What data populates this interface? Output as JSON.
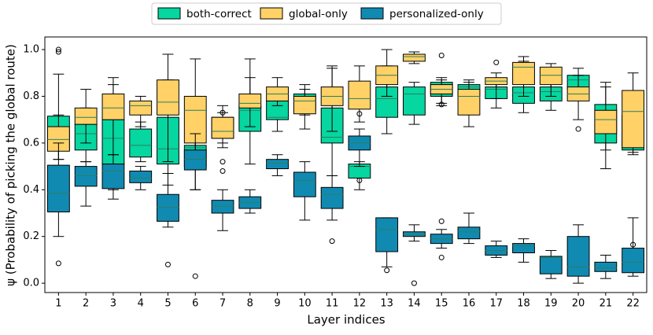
{
  "chart_data": {
    "type": "box",
    "ylabel": "ψ (Probability of picking the global route)",
    "xlabel": "Layer indices",
    "categories": [
      "1",
      "2",
      "3",
      "4",
      "5",
      "6",
      "7",
      "8",
      "9",
      "10",
      "11",
      "12",
      "13",
      "14",
      "15",
      "16",
      "17",
      "18",
      "19",
      "20",
      "21",
      "22"
    ],
    "ylim": [
      -0.04,
      1.054
    ],
    "yticks": [
      {
        "value": 0,
        "label": "0.0"
      },
      {
        "value": 0.2,
        "label": "0.2"
      },
      {
        "value": 0.4,
        "label": "0.4"
      },
      {
        "value": 0.6,
        "label": "0.6"
      },
      {
        "value": 0.8,
        "label": "0.8"
      },
      {
        "value": 1,
        "label": "1.0"
      }
    ],
    "legend": "upper center",
    "series": [
      {
        "name": "both-correct",
        "color": "#06d6a0",
        "values": [
          [
            0.53,
            0.57,
            0.67,
            0.715,
            0.895
          ],
          [
            0.52,
            0.57,
            0.64,
            0.68,
            0.75
          ],
          [
            0.4,
            0.51,
            0.62,
            0.7,
            0.85
          ],
          [
            0.52,
            0.54,
            0.59,
            0.66,
            0.69
          ],
          [
            0.42,
            0.51,
            0.575,
            0.71,
            0.87
          ],
          [
            0.4,
            0.5,
            0.58,
            0.59,
            0.75
          ],
          [
            0.58,
            0.62,
            0.64,
            0.71,
            0.73
          ],
          [
            0.51,
            0.65,
            0.74,
            0.76,
            0.88
          ],
          [
            0.65,
            0.7,
            0.71,
            0.78,
            0.8
          ],
          [
            0.72,
            0.74,
            0.8,
            0.81,
            0.83
          ],
          [
            0.46,
            0.6,
            0.625,
            0.75,
            0.93
          ],
          [
            0.4,
            0.45,
            0.5,
            0.51,
            0.52
          ],
          [
            0.64,
            0.71,
            0.79,
            0.84,
            0.93
          ],
          [
            0.68,
            0.72,
            0.81,
            0.84,
            0.86
          ],
          [
            0.77,
            0.8,
            0.84,
            0.86,
            0.87
          ],
          [
            0.76,
            0.8,
            0.84,
            0.85,
            0.87
          ],
          [
            0.75,
            0.79,
            0.83,
            0.84,
            0.87
          ],
          [
            0.73,
            0.77,
            0.815,
            0.84,
            0.95
          ],
          [
            0.74,
            0.78,
            0.82,
            0.84,
            0.86
          ],
          [
            0.79,
            0.83,
            0.87,
            0.89,
            0.92
          ],
          [
            0.49,
            0.6,
            0.65,
            0.765,
            0.86
          ],
          [
            0.56,
            0.57,
            0.66,
            0.72,
            0.8
          ]
        ],
        "outliers": [
          [
            1.0,
            0.99
          ],
          [],
          [],
          [],
          [],
          [],
          [
            0.73
          ],
          [],
          [],
          [],
          [],
          [
            0.44
          ],
          [],
          [],
          [],
          [],
          [
            0.945
          ],
          [],
          [],
          [],
          [],
          []
        ]
      },
      {
        "name": "global-only",
        "color": "#ffd166",
        "values": [
          [
            0.53,
            0.565,
            0.615,
            0.67,
            0.72
          ],
          [
            0.6,
            0.68,
            0.71,
            0.75,
            0.83
          ],
          [
            0.55,
            0.7,
            0.75,
            0.81,
            0.88
          ],
          [
            0.67,
            0.72,
            0.76,
            0.78,
            0.8
          ],
          [
            0.52,
            0.72,
            0.775,
            0.87,
            0.98
          ],
          [
            0.55,
            0.6,
            0.74,
            0.8,
            0.96
          ],
          [
            0.6,
            0.62,
            0.65,
            0.71,
            0.76
          ],
          [
            0.67,
            0.75,
            0.77,
            0.81,
            0.96
          ],
          [
            0.76,
            0.78,
            0.81,
            0.84,
            0.88
          ],
          [
            0.66,
            0.725,
            0.78,
            0.8,
            0.85
          ],
          [
            0.65,
            0.76,
            0.8,
            0.84,
            0.92
          ],
          [
            0.69,
            0.745,
            0.79,
            0.865,
            0.93
          ],
          [
            0.8,
            0.85,
            0.89,
            0.93,
            1.0
          ],
          [
            0.94,
            0.95,
            0.97,
            0.98,
            0.99
          ],
          [
            0.76,
            0.81,
            0.83,
            0.85,
            0.88
          ],
          [
            0.67,
            0.72,
            0.8,
            0.83,
            0.86
          ],
          [
            0.79,
            0.85,
            0.865,
            0.88,
            0.9
          ],
          [
            0.8,
            0.85,
            0.925,
            0.945,
            0.97
          ],
          [
            0.8,
            0.85,
            0.89,
            0.925,
            0.94
          ],
          [
            0.7,
            0.78,
            0.81,
            0.84,
            0.89
          ],
          [
            0.57,
            0.64,
            0.7,
            0.74,
            0.84
          ],
          [
            0.55,
            0.58,
            0.735,
            0.825,
            0.9
          ]
        ],
        "outliers": [
          [],
          [],
          [],
          [],
          [],
          [],
          [],
          [],
          [],
          [],
          [],
          [
            0.725
          ],
          [],
          [],
          [
            0.975,
            0.765
          ],
          [],
          [],
          [],
          [],
          [
            0.66
          ],
          [],
          []
        ]
      },
      {
        "name": "personalized-only",
        "color": "#118ab2",
        "values": [
          [
            0.2,
            0.305,
            0.385,
            0.505,
            0.6
          ],
          [
            0.33,
            0.415,
            0.46,
            0.5,
            0.52
          ],
          [
            0.36,
            0.405,
            0.48,
            0.51,
            0.55
          ],
          [
            0.4,
            0.43,
            0.45,
            0.48,
            0.5
          ],
          [
            0.24,
            0.265,
            0.325,
            0.38,
            0.47
          ],
          [
            0.4,
            0.485,
            0.53,
            0.57,
            0.64
          ],
          [
            0.225,
            0.3,
            0.33,
            0.355,
            0.4
          ],
          [
            0.3,
            0.32,
            0.345,
            0.37,
            0.4
          ],
          [
            0.46,
            0.49,
            0.515,
            0.53,
            0.55
          ],
          [
            0.27,
            0.37,
            0.44,
            0.475,
            0.52
          ],
          [
            0.27,
            0.32,
            0.38,
            0.41,
            0.46
          ],
          [
            0.5,
            0.57,
            0.6,
            0.63,
            0.66
          ],
          [
            0.07,
            0.135,
            0.23,
            0.28,
            0.28
          ],
          [
            0.18,
            0.2,
            0.21,
            0.22,
            0.25
          ],
          [
            0.15,
            0.17,
            0.19,
            0.21,
            0.23
          ],
          [
            0.17,
            0.19,
            0.22,
            0.24,
            0.3
          ],
          [
            0.11,
            0.12,
            0.14,
            0.16,
            0.18
          ],
          [
            0.09,
            0.13,
            0.16,
            0.17,
            0.19
          ],
          [
            0.02,
            0.04,
            0.11,
            0.115,
            0.14
          ],
          [
            0.0,
            0.03,
            0.07,
            0.2,
            0.25
          ],
          [
            0.02,
            0.05,
            0.065,
            0.09,
            0.12
          ],
          [
            0.03,
            0.045,
            0.09,
            0.15,
            0.28
          ]
        ],
        "outliers": [
          [
            0.085
          ],
          [],
          [],
          [],
          [
            0.08
          ],
          [
            0.03
          ],
          [
            0.52,
            0.48
          ],
          [],
          [],
          [],
          [
            0.18
          ],
          [],
          [
            0.055
          ],
          [
            0.0
          ],
          [
            0.265,
            0.11
          ],
          [],
          [],
          [],
          [],
          [],
          [],
          [
            0.165
          ]
        ]
      }
    ]
  }
}
